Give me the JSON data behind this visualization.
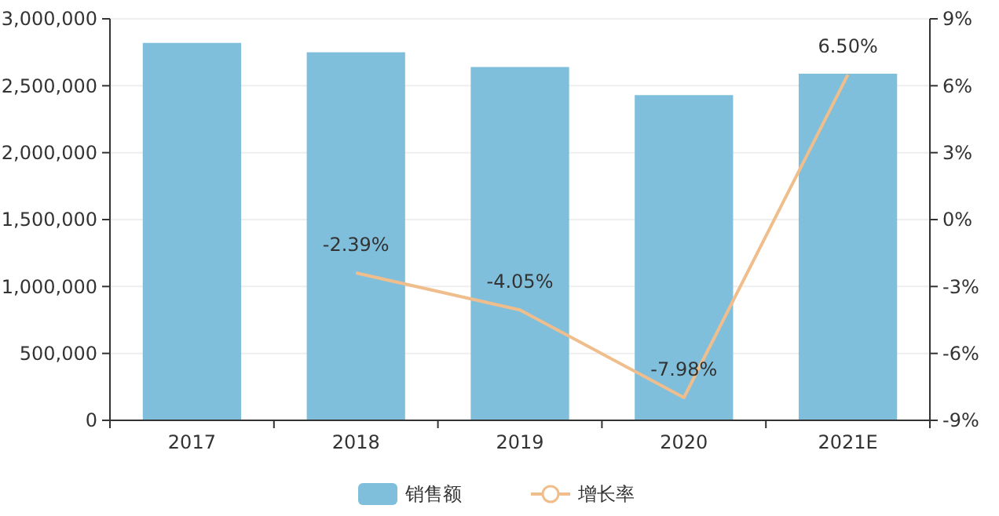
{
  "chart_data": {
    "type": "bar",
    "categories": [
      "2017",
      "2018",
      "2019",
      "2020",
      "2021E"
    ],
    "series": [
      {
        "name": "销售额",
        "color": "#7fbfdc",
        "values": [
          2820000,
          2750000,
          2640000,
          2430000,
          2590000
        ]
      },
      {
        "name": "增长率",
        "type": "line",
        "axis": "y2",
        "color": "#f0be8c",
        "values": [
          null,
          -2.39,
          -4.05,
          -7.98,
          6.5
        ],
        "value_labels": [
          null,
          "-2.39%",
          "-4.05%",
          "-7.98%",
          "6.50%"
        ]
      }
    ],
    "ylim": [
      0,
      3000000
    ],
    "yticks": [
      {
        "value": 0,
        "label": "0"
      },
      {
        "value": 500000,
        "label": "500,000"
      },
      {
        "value": 1000000,
        "label": "1,000,000"
      },
      {
        "value": 1500000,
        "label": "1,500,000"
      },
      {
        "value": 2000000,
        "label": "2,000,000"
      },
      {
        "value": 2500000,
        "label": "2,500,000"
      },
      {
        "value": 3000000,
        "label": "3,000,000"
      }
    ],
    "y2lim": [
      -9,
      9
    ],
    "y2ticks": [
      {
        "value": -9,
        "label": "-9%"
      },
      {
        "value": -6,
        "label": "-6%"
      },
      {
        "value": -3,
        "label": "-3%"
      },
      {
        "value": 0,
        "label": "0%"
      },
      {
        "value": 3,
        "label": "3%"
      },
      {
        "value": 6,
        "label": "6%"
      },
      {
        "value": 9,
        "label": "9%"
      }
    ],
    "grid": "y",
    "legend": "bottom",
    "marker": "none",
    "line_style": "solid"
  }
}
